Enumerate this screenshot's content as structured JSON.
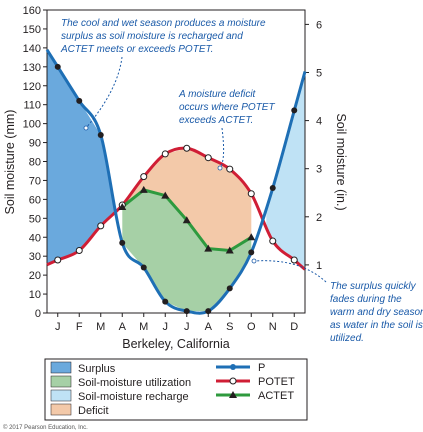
{
  "chart_data": {
    "type": "line",
    "title": "Berkeley, California",
    "categories": [
      "J",
      "F",
      "M",
      "A",
      "M",
      "J",
      "J",
      "A",
      "S",
      "O",
      "N",
      "D"
    ],
    "ylabel_left": "Soil moisture (mm)",
    "ylabel_right": "Soil moisture (in.)",
    "yticks_left": [
      "0",
      "10",
      "20",
      "30",
      "40",
      "50",
      "60",
      "70",
      "80",
      "90",
      "100",
      "110",
      "120",
      "130",
      "140",
      "150",
      "160"
    ],
    "yticks_right": [
      "1",
      "2",
      "3",
      "4",
      "5",
      "6"
    ],
    "ylim_left": [
      0,
      160
    ],
    "grid": false,
    "series": [
      {
        "name": "P",
        "color": "#1e6fb5",
        "values": [
          130,
          112,
          94,
          37,
          24,
          6,
          1,
          1,
          13,
          32,
          66,
          107
        ]
      },
      {
        "name": "POTET",
        "color": "#d01e35",
        "values": [
          28,
          33,
          46,
          57,
          72,
          84,
          87,
          82,
          76,
          63,
          38,
          28
        ]
      },
      {
        "name": "ACTET",
        "color": "#2e9a3e",
        "values": [
          null,
          null,
          null,
          56,
          65,
          62,
          49,
          34,
          33,
          40,
          null,
          null
        ]
      }
    ],
    "areas": [
      {
        "name": "Surplus",
        "color": "#6aa9dd"
      },
      {
        "name": "Soil-moisture utilization",
        "color": "#a6d0a6"
      },
      {
        "name": "Soil-moisture recharge",
        "color": "#bfe2f5"
      },
      {
        "name": "Deficit",
        "color": "#f3c9a9"
      }
    ],
    "annotations": [
      [
        "The cool and wet season produces a moisture",
        "surplus as soil moisture is recharged and",
        "ACTET meets or exceeds POTET."
      ],
      [
        "A moisture deficit",
        "occurs where POTET",
        "exceeds ACTET."
      ],
      [
        "The surplus quickly",
        "fades during the",
        "warm and dry season",
        "as water in the soil is",
        "utilized."
      ]
    ]
  },
  "copyright": "© 2017 Pearson Education, Inc."
}
